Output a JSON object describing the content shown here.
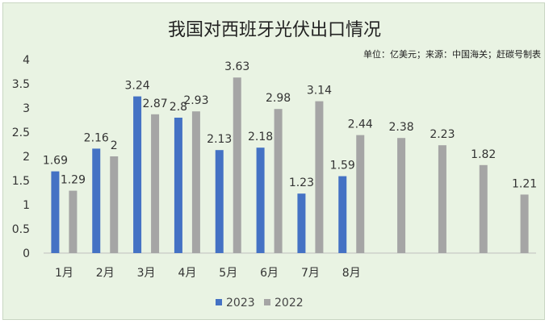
{
  "chart_data": {
    "type": "bar",
    "title": "我国对西班牙光伏出口情况",
    "source_note": "单位：亿美元；来源：中国海关；赶碳号制表",
    "categories": [
      "1月",
      "2月",
      "3月",
      "4月",
      "5月",
      "6月",
      "7月",
      "8月",
      "",
      "",
      "",
      ""
    ],
    "series": [
      {
        "name": "2023",
        "color": "#4472c4",
        "values": [
          1.69,
          2.16,
          3.24,
          2.8,
          2.13,
          2.18,
          1.23,
          1.59,
          null,
          null,
          null,
          null
        ],
        "labels": [
          "1.69",
          "2.16",
          "3.24",
          "2.8",
          "2.13",
          "2.18",
          "1.23",
          "1.59",
          "",
          "",
          "",
          ""
        ]
      },
      {
        "name": "2022",
        "color": "#a5a5a5",
        "values": [
          1.29,
          2,
          2.87,
          2.93,
          3.63,
          2.98,
          3.14,
          2.44,
          2.38,
          2.23,
          1.82,
          1.21
        ],
        "labels": [
          "1.29",
          "2",
          "2.87",
          "2.93",
          "3.63",
          "2.98",
          "3.14",
          "2.44",
          "2.38",
          "2.23",
          "1.82",
          "1.21"
        ]
      }
    ],
    "ylim": [
      0,
      4
    ],
    "yticks": [
      "0",
      "0.5",
      "1",
      "1.5",
      "2",
      "2.5",
      "3",
      "3.5",
      "4"
    ],
    "grid": false,
    "legend_position": "bottom"
  }
}
